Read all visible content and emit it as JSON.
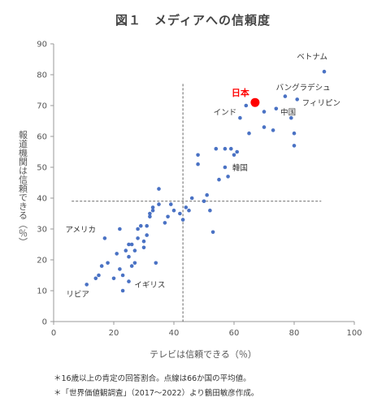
{
  "title": "図１　メディアへの信頼度",
  "chart_data": {
    "type": "scatter",
    "title": "図１　メディアへの信頼度",
    "xlabel": "テレビは信頼できる（％）",
    "ylabel": "報道機関は信頼できる（％）",
    "xlim": [
      0,
      100
    ],
    "ylim": [
      0,
      90
    ],
    "xticks": [
      "0",
      "20",
      "40",
      "60",
      "80",
      "100"
    ],
    "yticks": [
      "0",
      "10",
      "20",
      "30",
      "40",
      "50",
      "60",
      "70",
      "80",
      "90"
    ],
    "avg_x": 43,
    "avg_y": 39,
    "grid": false,
    "colors": {
      "points": "#4a72c4",
      "highlight": "#ff0000",
      "avg_lines": "#555555"
    },
    "points": [
      [
        11,
        12
      ],
      [
        14,
        14
      ],
      [
        15,
        15
      ],
      [
        16,
        18
      ],
      [
        17,
        27
      ],
      [
        18,
        19
      ],
      [
        20,
        14
      ],
      [
        21,
        22
      ],
      [
        22,
        30
      ],
      [
        22,
        17
      ],
      [
        23,
        10
      ],
      [
        23,
        15
      ],
      [
        24,
        23
      ],
      [
        25,
        13
      ],
      [
        25,
        21
      ],
      [
        25,
        25
      ],
      [
        26,
        18
      ],
      [
        26,
        25
      ],
      [
        27,
        19
      ],
      [
        27,
        23
      ],
      [
        28,
        30
      ],
      [
        28,
        27
      ],
      [
        29,
        31
      ],
      [
        30,
        24
      ],
      [
        30,
        26
      ],
      [
        31,
        28
      ],
      [
        31,
        31
      ],
      [
        32,
        34
      ],
      [
        32,
        35
      ],
      [
        33,
        36
      ],
      [
        33,
        37
      ],
      [
        34,
        19
      ],
      [
        35,
        38
      ],
      [
        35,
        43
      ],
      [
        37,
        32
      ],
      [
        38,
        34
      ],
      [
        39,
        38
      ],
      [
        40,
        36
      ],
      [
        42,
        35
      ],
      [
        43,
        33
      ],
      [
        44,
        37
      ],
      [
        45,
        36
      ],
      [
        46,
        40
      ],
      [
        48,
        54
      ],
      [
        48,
        51
      ],
      [
        50,
        39
      ],
      [
        51,
        41
      ],
      [
        52,
        36
      ],
      [
        53,
        29
      ],
      [
        54,
        56
      ],
      [
        55,
        46
      ],
      [
        57,
        56
      ],
      [
        57,
        50
      ],
      [
        58,
        47
      ],
      [
        59,
        56
      ],
      [
        60,
        54
      ],
      [
        61,
        55
      ],
      [
        62,
        66
      ],
      [
        64,
        70
      ],
      [
        65,
        61
      ],
      [
        70,
        68
      ],
      [
        70,
        63
      ],
      [
        73,
        62
      ],
      [
        74,
        69
      ],
      [
        77,
        73
      ],
      [
        79,
        66
      ],
      [
        80,
        57
      ],
      [
        80,
        61
      ],
      [
        81,
        72
      ],
      [
        90,
        81
      ]
    ],
    "highlight": {
      "label": "日本",
      "x": 67,
      "y": 71
    },
    "annotations": [
      {
        "text": "ベトナム",
        "x": 86,
        "y": 85
      },
      {
        "text": "バングラデシュ",
        "x": 83,
        "y": 75
      },
      {
        "text": "フィリピン",
        "x": 89,
        "y": 70
      },
      {
        "text": "インド",
        "x": 57,
        "y": 67
      },
      {
        "text": "中国",
        "x": 78,
        "y": 67
      },
      {
        "text": "韓国",
        "x": 62,
        "y": 49
      },
      {
        "text": "アメリカ",
        "x": 9,
        "y": 29
      },
      {
        "text": "イギリス",
        "x": 32,
        "y": 11
      },
      {
        "text": "リビア",
        "x": 8,
        "y": 8
      }
    ]
  },
  "notes": [
    "＊16歳以上の肯定の回答割合。点線は66か国の平均値。",
    "＊「世界価値観調査」（2017〜2022）より鶴田敏彦作成。"
  ]
}
